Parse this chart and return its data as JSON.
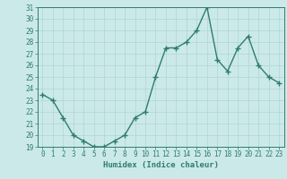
{
  "x": [
    0,
    1,
    2,
    3,
    4,
    5,
    6,
    7,
    8,
    9,
    10,
    11,
    12,
    13,
    14,
    15,
    16,
    17,
    18,
    19,
    20,
    21,
    22,
    23
  ],
  "y": [
    23.5,
    23.0,
    21.5,
    20.0,
    19.5,
    19.0,
    19.0,
    19.5,
    20.0,
    21.5,
    22.0,
    25.0,
    27.5,
    27.5,
    28.0,
    29.0,
    31.0,
    26.5,
    25.5,
    27.5,
    28.5,
    26.0,
    25.0,
    24.5
  ],
  "line_color": "#2e7d6e",
  "marker": "+",
  "marker_size": 4,
  "marker_color": "#2e7d6e",
  "bg_color": "#cce9e9",
  "grid_color": "#afd4d4",
  "axis_color": "#2e7d6e",
  "tick_color": "#2e7d6e",
  "xlabel": "Humidex (Indice chaleur)",
  "ylim": [
    19,
    31
  ],
  "xlim": [
    -0.5,
    23.5
  ],
  "yticks": [
    19,
    20,
    21,
    22,
    23,
    24,
    25,
    26,
    27,
    28,
    29,
    30,
    31
  ],
  "xticks": [
    0,
    1,
    2,
    3,
    4,
    5,
    6,
    7,
    8,
    9,
    10,
    11,
    12,
    13,
    14,
    15,
    16,
    17,
    18,
    19,
    20,
    21,
    22,
    23
  ],
  "tick_label_size": 5.5,
  "xlabel_size": 6.5,
  "line_width": 1.0
}
